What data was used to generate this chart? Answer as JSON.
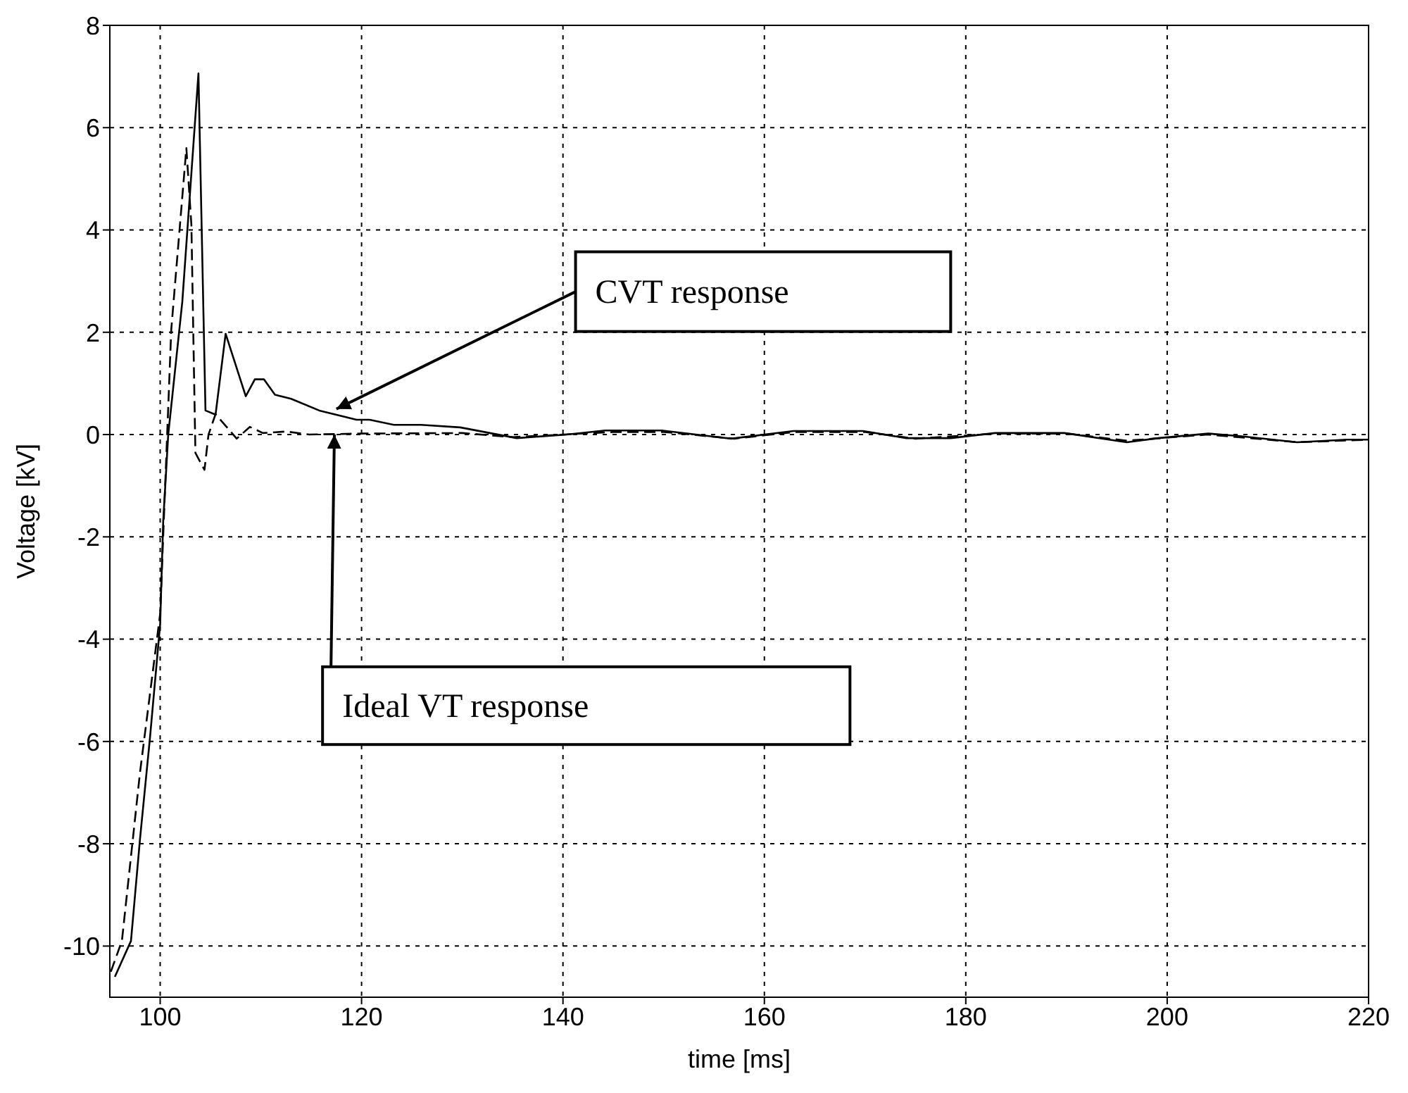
{
  "chart_data": {
    "type": "line",
    "xlabel": "time [ms]",
    "ylabel": "Voltage [kV]",
    "xlim": [
      95,
      220
    ],
    "xticks": [
      100,
      120,
      140,
      160,
      180,
      200,
      220
    ],
    "ylim": [
      -11,
      8
    ],
    "yticks": [
      -10,
      -8,
      -6,
      -4,
      -2,
      0,
      2,
      4,
      6,
      8
    ],
    "grid": true,
    "marker": "none",
    "series": [
      {
        "color": "#000000",
        "line_style": "solid",
        "x": [
          95.5,
          97.1,
          98,
          99,
          100,
          100.3,
          100.8,
          102.2,
          103.8,
          104.5,
          105.5,
          106.5,
          108.5,
          109.4,
          110.3,
          111.4,
          113,
          115.8,
          119.5,
          120.8,
          123.2,
          125.9,
          129.8,
          135.4,
          140.4,
          144.2,
          149.8,
          156.7,
          162.9,
          169.8,
          174.1,
          178.5,
          182.9,
          189.8,
          196,
          199.1,
          204.1,
          207.2,
          212.9,
          215.9,
          217.8,
          220
        ],
        "values": [
          -10.6,
          -9.9,
          -7.9,
          -5.9,
          -3.7,
          -1.7,
          0,
          2.6,
          7.06,
          0.47,
          0.39,
          1.97,
          0.75,
          1.08,
          1.08,
          0.78,
          0.7,
          0.47,
          0.29,
          0.29,
          0.19,
          0.19,
          0.14,
          -0.07,
          0,
          0.08,
          0.08,
          -0.08,
          0.07,
          0.07,
          -0.07,
          -0.07,
          0.03,
          0.03,
          -0.15,
          -0.07,
          0.02,
          -0.03,
          -0.15,
          -0.12,
          -0.1,
          -0.1
        ]
      },
      {
        "color": "#000000",
        "line_style": "dashed",
        "x": [
          95.1,
          96.2,
          98,
          100,
          101.1,
          102.6,
          103.1,
          103.5,
          104.4,
          104.8,
          105.5,
          107.6,
          108.9,
          110.2,
          112.5,
          114.8,
          120,
          130,
          135,
          145,
          150,
          157,
          163,
          170,
          175,
          183,
          190,
          196,
          204,
          213,
          220
        ],
        "values": [
          -10.5,
          -9.9,
          -6.6,
          -3.5,
          2.05,
          5.6,
          4.1,
          -0.36,
          -0.69,
          0,
          0.4,
          -0.08,
          0.15,
          0.03,
          0.06,
          0,
          0.02,
          0.03,
          -0.05,
          0.05,
          0.05,
          -0.08,
          0.05,
          0.05,
          -0.08,
          0.02,
          0.02,
          -0.12,
          0,
          -0.15,
          -0.1
        ]
      }
    ],
    "annotations": [
      {
        "text": "CVT response",
        "x": 117.5,
        "y": 0.5
      },
      {
        "text": "Ideal VT response",
        "x": 117.3,
        "y": 0
      }
    ]
  }
}
